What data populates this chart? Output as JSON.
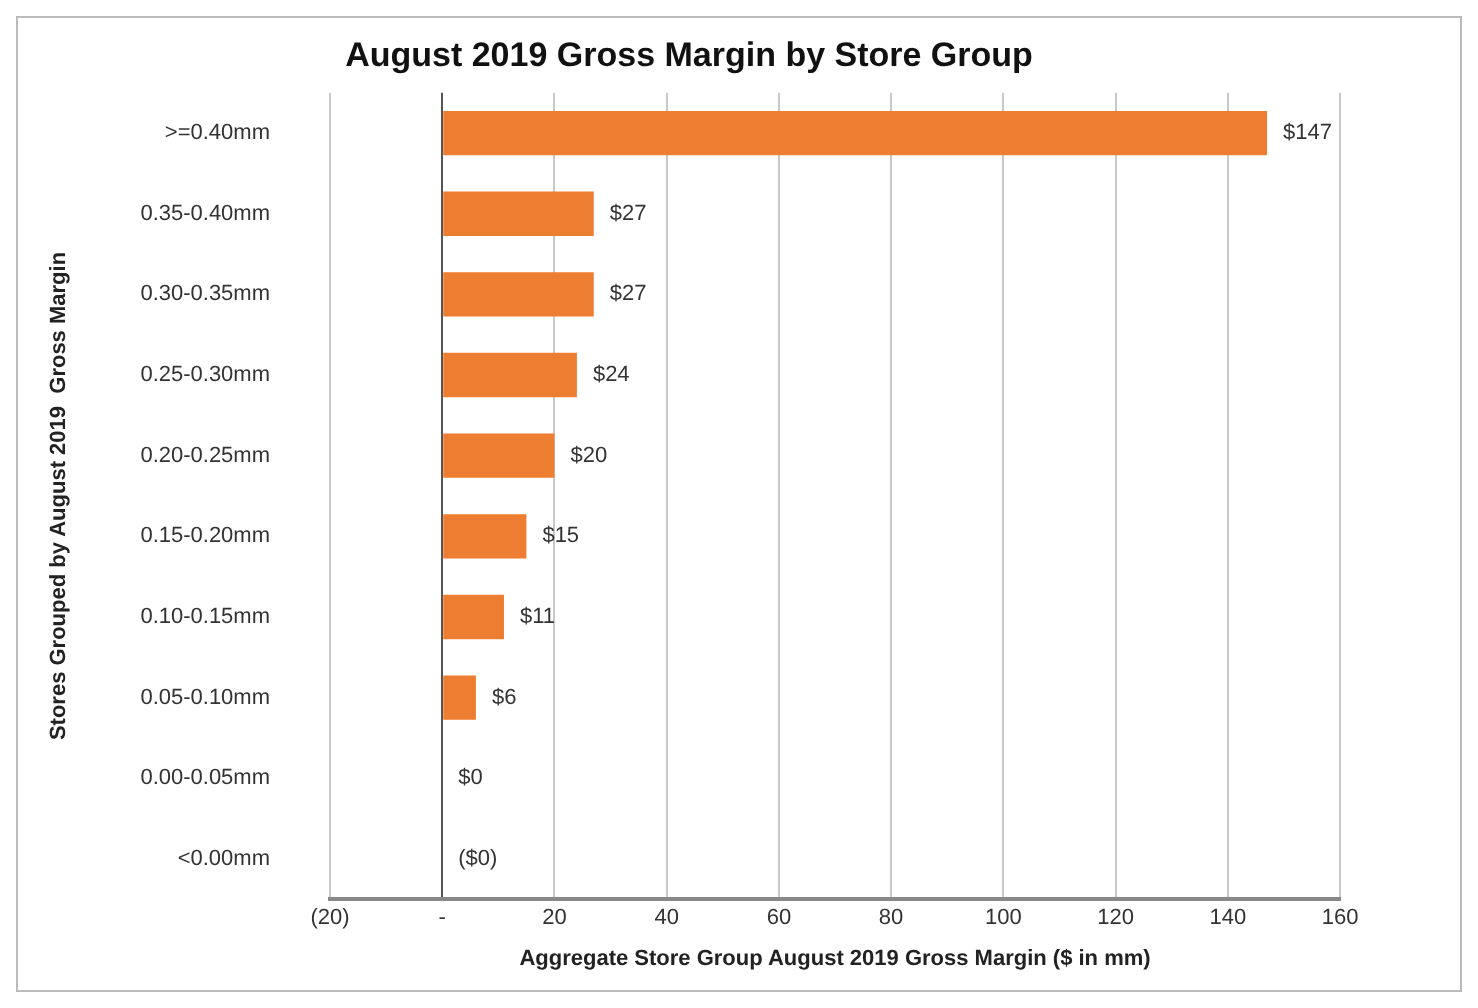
{
  "chart_data": {
    "type": "bar",
    "orientation": "horizontal",
    "title": "August 2019 Gross Margin by Store Group",
    "xlabel": "Aggregate Store Group August 2019 Gross Margin ($ in mm)",
    "ylabel": "Stores Grouped by August 2019  Gross Margin",
    "categories": [
      ">=0.40mm",
      "0.35-0.40mm",
      "0.30-0.35mm",
      "0.25-0.30mm",
      "0.20-0.25mm",
      "0.15-0.20mm",
      "0.10-0.15mm",
      "0.05-0.10mm",
      "0.00-0.05mm",
      "<0.00mm"
    ],
    "values": [
      147,
      27,
      27,
      24,
      20,
      15,
      11,
      6,
      0,
      0
    ],
    "value_labels": [
      "$147",
      "$27",
      "$27",
      "$24",
      "$20",
      "$15",
      "$11",
      "$6",
      "$0",
      "($0)"
    ],
    "color": "#ed7d31",
    "xlim": [
      -20,
      160
    ],
    "xticks": [
      {
        "value": -20,
        "label": "(20)"
      },
      {
        "value": 0,
        "label": "-"
      },
      20,
      40,
      60,
      80,
      100,
      120,
      140,
      160
    ],
    "grid": "x"
  }
}
